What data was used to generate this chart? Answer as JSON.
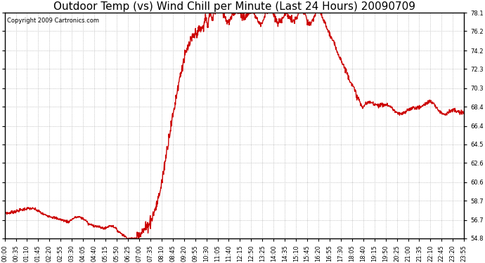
{
  "title": "Outdoor Temp (vs) Wind Chill per Minute (Last 24 Hours) 20090709",
  "copyright": "Copyright 2009 Cartronics.com",
  "line_color": "#cc0000",
  "bg_color": "#ffffff",
  "plot_bg_color": "#ffffff",
  "grid_color": "#b0b0b0",
  "ymin": 54.8,
  "ymax": 78.1,
  "yticks": [
    54.8,
    56.7,
    58.7,
    60.6,
    62.6,
    64.5,
    66.4,
    68.4,
    70.3,
    72.3,
    74.2,
    76.2,
    78.1
  ],
  "xtick_labels": [
    "00:00",
    "00:35",
    "01:10",
    "01:45",
    "02:20",
    "02:55",
    "03:30",
    "04:05",
    "04:40",
    "05:15",
    "05:50",
    "06:25",
    "07:00",
    "07:35",
    "08:10",
    "08:45",
    "09:20",
    "09:55",
    "10:30",
    "11:05",
    "11:40",
    "12:15",
    "12:50",
    "13:25",
    "14:00",
    "14:35",
    "15:10",
    "15:45",
    "16:20",
    "16:55",
    "17:30",
    "18:05",
    "18:40",
    "19:15",
    "19:50",
    "20:25",
    "21:00",
    "21:35",
    "22:10",
    "22:45",
    "23:20",
    "23:55"
  ],
  "title_fontsize": 11,
  "copyright_fontsize": 6,
  "tick_fontsize": 6,
  "line_width": 1.0,
  "figsize": [
    6.9,
    3.75
  ],
  "dpi": 100
}
